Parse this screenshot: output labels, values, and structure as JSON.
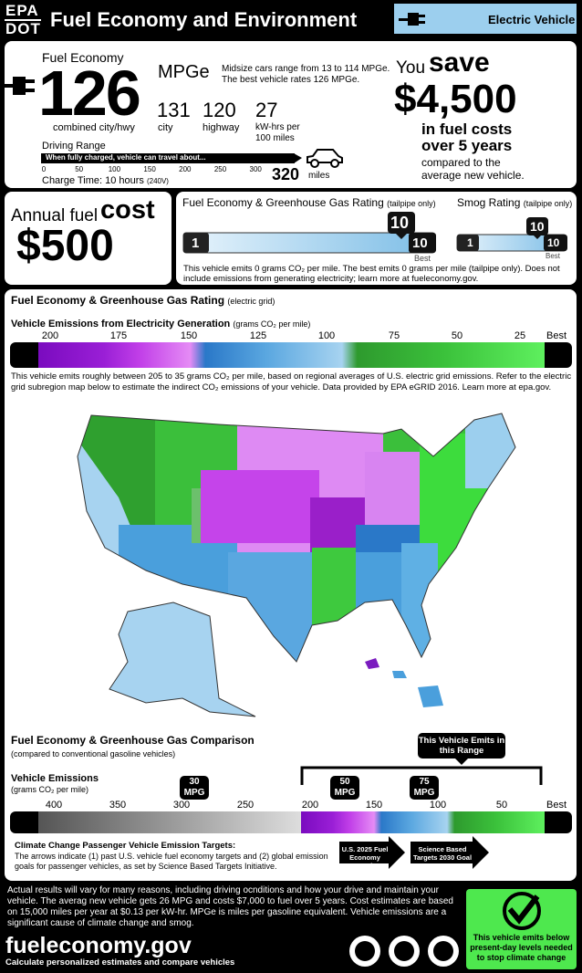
{
  "header": {
    "epa": "EPA",
    "dot": "DOT",
    "title": "Fuel Economy and Environment",
    "vehicle_type": "Electric Vehicle"
  },
  "fuel_economy": {
    "label": "Fuel Economy",
    "value": "126",
    "unit": "MPGe",
    "note": "Midsize cars range from 13 to 114 MPGe. The best vehicle rates 126 MPGe.",
    "combined_label": "combined city/hwy",
    "city_value": "131",
    "city_label": "city",
    "highway_value": "120",
    "highway_label": "highway",
    "kwh_value": "27",
    "kwh_label": "kW-hrs per 100 miles"
  },
  "driving_range": {
    "label": "Driving Range",
    "bar_text": "When fully charged, vehicle can travel about...",
    "ticks": [
      "0",
      "50",
      "100",
      "150",
      "200",
      "250",
      "300"
    ],
    "value": "320",
    "unit": "miles",
    "charge_time": "Charge Time: 10 hours",
    "charge_note": "(240V)"
  },
  "savings": {
    "you": "You",
    "save": "save",
    "amount": "$4,500",
    "line1": "in fuel costs",
    "line2": "over 5 years",
    "note1": "compared to the",
    "note2": "average new vehicle."
  },
  "annual": {
    "label": "Annual fuel",
    "cost": "cost",
    "amount": "$500"
  },
  "ghg_rating": {
    "title": "Fuel Economy & Greenhouse Gas Rating",
    "qualifier": "(tailpipe only)",
    "min": "1",
    "max": "10",
    "rating": "10",
    "best": "Best"
  },
  "smog_rating": {
    "title": "Smog Rating",
    "qualifier": "(tailpipe only)",
    "min": "1",
    "max": "10",
    "rating": "10",
    "best": "Best"
  },
  "tailpipe_note": "This vehicle emits 0 grams CO₂ per mile. The best emits 0 grams per mile (tailpipe only). Does not include emissions from generating electricity; learn more at fueleconomy.gov.",
  "grid": {
    "title": "Fuel Economy & Greenhouse Gas Rating",
    "qualifier": "(electric grid)",
    "scale_title": "Vehicle Emissions from Electricity Generation",
    "scale_unit": "(grams CO₂ per mile)",
    "scale_labels": [
      "200",
      "175",
      "150",
      "125",
      "100",
      "75",
      "50",
      "25",
      "Best"
    ],
    "note": "This vehicle emits roughly between 205 to 35 grams CO₂ per mile, based on regional averages of U.S. electric grid emissions. Refer to the electric grid subregion map below to estimate the indirect CO₂ emissions of your vehicle. Data provided by EPA eGRID 2016. Learn more at epa.gov."
  },
  "comparison": {
    "title": "Fuel Economy & Greenhouse Gas Comparison",
    "subtitle": "(compared to conventional gasoline vehicles)",
    "range_label": "This Vehicle Emits in this Range",
    "emissions_label": "Vehicle Emissions",
    "emissions_unit": "(grams CO₂ per mile)",
    "scale_labels": [
      "400",
      "350",
      "300",
      "250",
      "200",
      "150",
      "100",
      "50",
      "Best"
    ],
    "markers": [
      {
        "value": "30",
        "unit": "MPG"
      },
      {
        "value": "50",
        "unit": "MPG"
      },
      {
        "value": "75",
        "unit": "MPG"
      }
    ],
    "targets_title": "Climate Change Passenger Vehicle Emission Targets:",
    "targets_text": "The arrows indicate (1) past U.S. vehicle fuel economy targets and (2) global emission goals for passenger vehicles, as set by Science Based Targets Initiative.",
    "goals": [
      "U.S. 2025 Fuel Economy Goal",
      "Science Based Targets 2030 Goal"
    ]
  },
  "footer": {
    "disclaimer": "Actual results will vary for many reasons, including driving ocnditions and how your drive and maintain your vehicle. The averag new vehicle gets 26 MPG and costs $7,000 to fuel over 5 years. Cost estimates are based on 15,000 miles per year at $0.13 per kW-hr. MPGe is miles per gasoline equivalent. Vehicle emissions are a significant cause of climate change and smog.",
    "site": "fueleconomy.gov",
    "tagline": "Calculate personalized estimates and compare vehicles",
    "badge": "This vehicle emits below present-day levels needed to stop climate change"
  }
}
